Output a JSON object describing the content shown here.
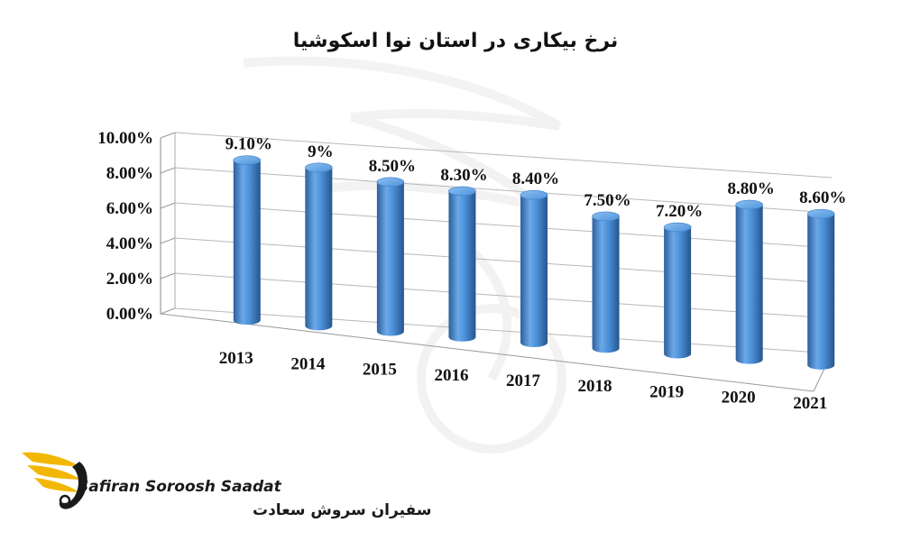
{
  "chart_data": {
    "type": "bar",
    "title": "نرخ بیکاری در استان نوا اسکوشیا",
    "categories": [
      "2013",
      "2014",
      "2015",
      "2016",
      "2017",
      "2018",
      "2019",
      "2020",
      "2021"
    ],
    "values": [
      9.1,
      9.0,
      8.5,
      8.3,
      8.4,
      7.5,
      7.2,
      8.8,
      8.6
    ],
    "data_labels": [
      "9.10%",
      "9%",
      "8.50%",
      "8.30%",
      "8.40%",
      "7.50%",
      "7.20%",
      "8.80%",
      "8.60%"
    ],
    "y_ticks": [
      "0.00%",
      "2.00%",
      "4.00%",
      "6.00%",
      "8.00%",
      "10.00%"
    ],
    "ylim": [
      0,
      10
    ],
    "xlabel": "",
    "ylabel": "",
    "grid": true,
    "bar_color": "#4a8fd8",
    "style": "3d-cylinder"
  },
  "logo": {
    "name_en": "Safiran Soroosh Saadat",
    "name_fa": "سفیران سروش سعادت",
    "wing_color": "#f2b705"
  }
}
